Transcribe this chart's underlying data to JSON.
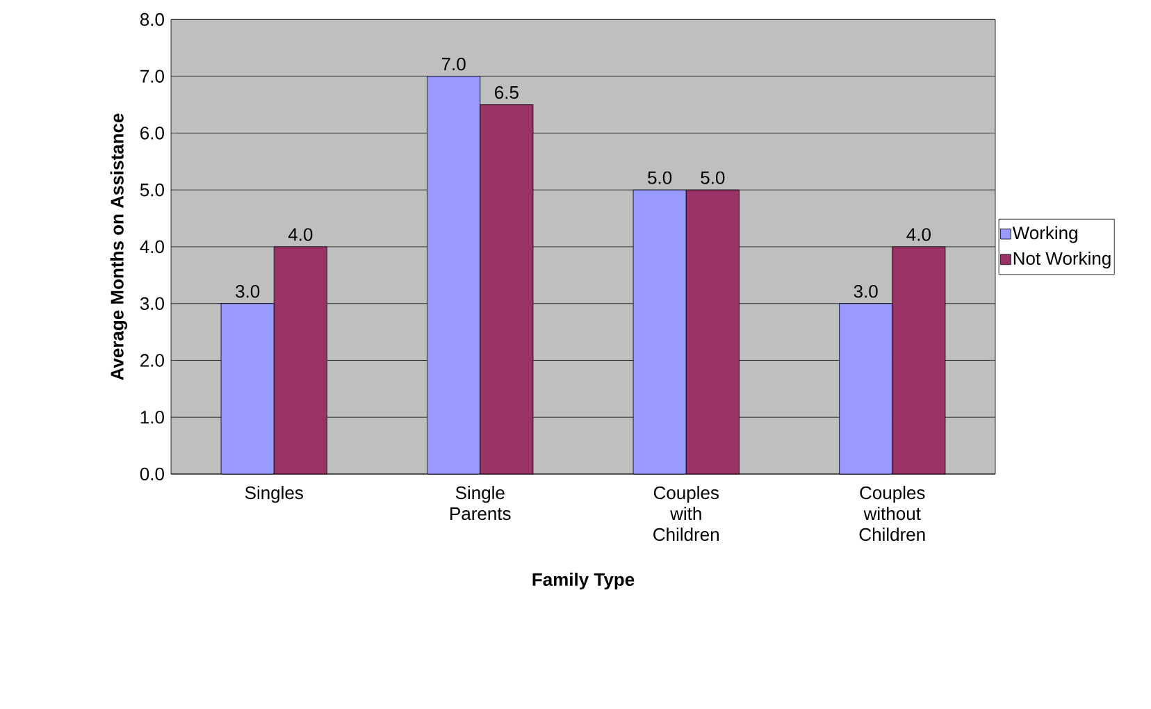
{
  "chart_data": {
    "type": "bar",
    "xlabel": "Family Type",
    "ylabel": "Average Months on Assistance",
    "categories": [
      "Singles",
      "Single Parents",
      "Couples with Children",
      "Couples without Children"
    ],
    "series": [
      {
        "name": "Working",
        "color": "#9999ff",
        "values": [
          3.0,
          7.0,
          5.0,
          3.0
        ],
        "value_labels": [
          "3.0",
          "7.0",
          "5.0",
          "3.0"
        ]
      },
      {
        "name": "Not Working",
        "color": "#993366",
        "values": [
          4.0,
          6.5,
          5.0,
          4.0
        ],
        "value_labels": [
          "4.0",
          "6.5",
          "5.0",
          "4.0"
        ]
      }
    ],
    "ylim": [
      0,
      8
    ],
    "yticks": [
      {
        "value": 0,
        "label": "0.0"
      },
      {
        "value": 1,
        "label": "1.0"
      },
      {
        "value": 2,
        "label": "2.0"
      },
      {
        "value": 3,
        "label": "3.0"
      },
      {
        "value": 4,
        "label": "4.0"
      },
      {
        "value": 5,
        "label": "5.0"
      },
      {
        "value": 6,
        "label": "6.0"
      },
      {
        "value": 7,
        "label": "7.0"
      },
      {
        "value": 8,
        "label": "8.0"
      }
    ],
    "grid": "y",
    "legend": "right"
  }
}
